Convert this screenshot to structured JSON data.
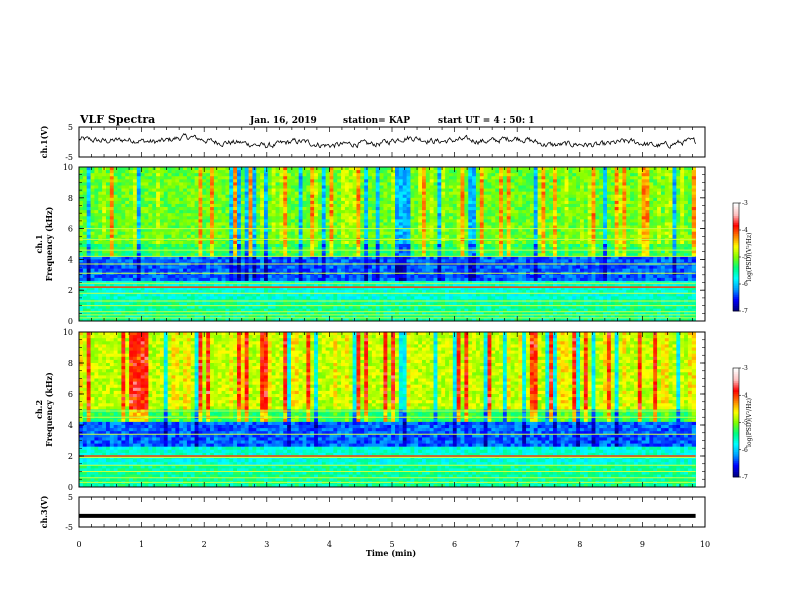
{
  "header": {
    "title": "VLF Spectra",
    "date": "Jan. 16, 2019",
    "station": "station= KAP",
    "start": "start UT =  4 : 50: 1"
  },
  "colors": {
    "colormap": [
      "#000080",
      "#0000ff",
      "#00a0ff",
      "#00ffff",
      "#00ff80",
      "#7fff00",
      "#ffff00",
      "#ff8000",
      "#ff0000",
      "#ffc0c0",
      "#ffffff"
    ]
  },
  "chart_data": [
    {
      "type": "line",
      "name": "ch1-waveform",
      "ylabel": "ch.1(V)",
      "ylim": [
        -5,
        5
      ],
      "ytick_labels": [
        "5",
        "-5"
      ],
      "xlim": [
        0,
        10
      ],
      "x_extent_min": [
        0,
        9.85
      ],
      "y_range_approx": [
        -3,
        3
      ],
      "y_mean_approx": 0
    },
    {
      "type": "heatmap",
      "name": "ch1-spectrogram",
      "ylabel": "ch.1\nFrequency (kHz)",
      "ylim": [
        0,
        10
      ],
      "ytick_labels": [
        "0",
        "2",
        "4",
        "6",
        "8",
        "10"
      ],
      "xlim": [
        0,
        10
      ],
      "x_extent_min": [
        0,
        9.85
      ],
      "colorbar": {
        "label": "log(PSD)(V²/Hz)",
        "range": [
          -7,
          -3
        ],
        "tick_labels": [
          "-3",
          "-4",
          "-5",
          "-6",
          "-7"
        ]
      },
      "horizontal_lines_khz": [
        0.2,
        0.4,
        0.6,
        1.0,
        1.3,
        1.8,
        2.2,
        2.45,
        3.1,
        3.7,
        4.2,
        4.6,
        5.3,
        6.0
      ],
      "strong_line_khz": 2.2
    },
    {
      "type": "heatmap",
      "name": "ch2-spectrogram",
      "ylabel": "ch.2\nFrequency (kHz)",
      "ylim": [
        0,
        10
      ],
      "ytick_labels": [
        "0",
        "2",
        "4",
        "6",
        "8",
        "10"
      ],
      "xlim": [
        0,
        10
      ],
      "x_extent_min": [
        0,
        9.85
      ],
      "colorbar": {
        "label": "log(PSD)(V²/Hz)",
        "range": [
          -7,
          -3
        ],
        "tick_labels": [
          "-3",
          "-4",
          "-5",
          "-6",
          "-7"
        ]
      },
      "horizontal_lines_khz": [
        0.3,
        0.6,
        1.0,
        1.4,
        1.9,
        2.0,
        3.4,
        4.5,
        4.9
      ],
      "strong_line_khz": 2.0
    },
    {
      "type": "line",
      "name": "ch3-waveform",
      "ylabel": "ch.3(V)",
      "ylim": [
        -5,
        5
      ],
      "ytick_labels": [
        "5",
        "-5"
      ],
      "xlim": [
        0,
        10
      ],
      "x_extent_min": [
        0,
        9.85
      ],
      "y_constant_approx": -1.3
    }
  ],
  "xaxis": {
    "label": "Time (min)",
    "tick_labels": [
      "0",
      "1",
      "2",
      "3",
      "4",
      "5",
      "6",
      "7",
      "8",
      "9",
      "10"
    ]
  }
}
